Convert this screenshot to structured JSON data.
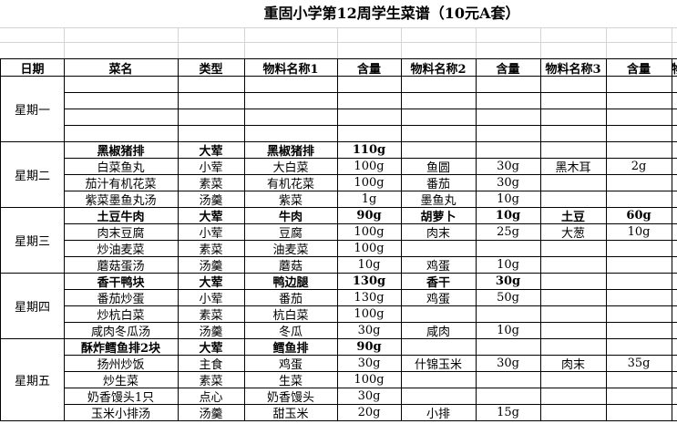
{
  "title": "重固小学第12周学生菜谱（10元A套）",
  "header": [
    "日期",
    "菜名",
    "类型",
    "物料名称1",
    "含量",
    "物料名称2",
    "含量",
    "物料名称3",
    "含量",
    "物"
  ],
  "days": [
    {
      "label": "星期一",
      "rows": []
    },
    {
      "label": "星期二",
      "rows": [
        {
          "bold": true,
          "cells": [
            "黑椒猪排",
            "大荤",
            "黑椒猪排",
            "110g"
          ]
        },
        {
          "bold": false,
          "cells": [
            "白菜鱼丸",
            "小荤",
            "大白菜",
            "100g",
            "鱼圆",
            "30g",
            "黑木耳",
            "2g"
          ]
        },
        {
          "bold": false,
          "cells": [
            "茄汁有机花菜",
            "素菜",
            "有机花菜",
            "100g",
            "番茄",
            "30g"
          ]
        },
        {
          "bold": false,
          "cells": [
            "紫菜墨鱼丸汤",
            "汤羹",
            "紫菜",
            "1g",
            "墨鱼丸",
            "10g"
          ]
        }
      ]
    },
    {
      "label": "星期三",
      "rows": [
        {
          "bold": true,
          "cells": [
            "土豆牛肉",
            "大荤",
            "牛肉",
            "90g",
            "胡萝卜",
            "10g",
            "土豆",
            "60g"
          ]
        },
        {
          "bold": false,
          "cells": [
            "肉末豆腐",
            "小荤",
            "豆腐",
            "100g",
            "肉末",
            "25g",
            "大葱",
            "10g"
          ]
        },
        {
          "bold": false,
          "cells": [
            "炒油麦菜",
            "素菜",
            "油麦菜",
            "100g"
          ]
        },
        {
          "bold": false,
          "cells": [
            "蘑菇蛋汤",
            "汤羹",
            "蘑菇",
            "10g",
            "鸡蛋",
            "10g"
          ]
        }
      ]
    },
    {
      "label": "星期四",
      "rows": [
        {
          "bold": true,
          "cells": [
            "香干鸭块",
            "大荤",
            "鸭边腿",
            "130g",
            "香干",
            "30g"
          ]
        },
        {
          "bold": false,
          "cells": [
            "番茄炒蛋",
            "小荤",
            "番茄",
            "130g",
            "鸡蛋",
            "50g"
          ]
        },
        {
          "bold": false,
          "cells": [
            "炒杭白菜",
            "素菜",
            "杭白菜",
            "100g"
          ]
        },
        {
          "bold": false,
          "cells": [
            "咸肉冬瓜汤",
            "汤羹",
            "冬瓜",
            "30g",
            "咸肉",
            "10g"
          ]
        }
      ]
    },
    {
      "label": "星期五",
      "rows": [
        {
          "bold": true,
          "cells": [
            "酥炸鳕鱼排2块",
            "大荤",
            "鳕鱼排",
            "90g"
          ]
        },
        {
          "bold": false,
          "cells": [
            "扬州炒饭",
            "主食",
            "鸡蛋",
            "30g",
            "什锦玉米",
            "30g",
            "肉末",
            "35g"
          ]
        },
        {
          "bold": false,
          "cells": [
            "炒生菜",
            "素菜",
            "生菜",
            "100g"
          ]
        },
        {
          "bold": false,
          "cells": [
            "奶香馒头1只",
            "点心",
            "奶香馒头",
            "30g"
          ]
        },
        {
          "bold": false,
          "cells": [
            "玉米小排汤",
            "汤羹",
            "甜玉米",
            "20g",
            "小排",
            "15g"
          ]
        }
      ]
    }
  ]
}
